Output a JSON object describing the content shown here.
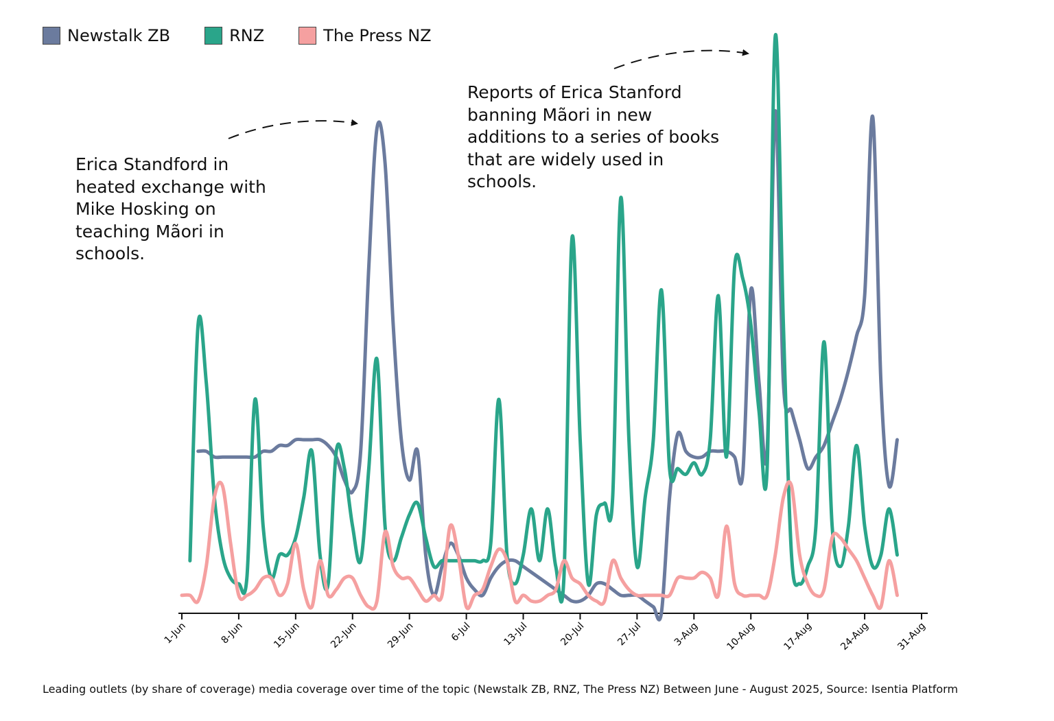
{
  "chart_data": {
    "type": "line",
    "annotations": [
      "Erica Standford in heated exchange with Mike Hosking on teaching Mãori in schools.",
      "Reports of Erica Stanford banning Mãori in new additions to a series of books that are widely used in schools."
    ],
    "caption": "Leading outlets (by share of coverage) media coverage over time of the topic (Newstalk ZB, RNZ, The Press NZ) Between June - August 2025, Source: Isentia Platform",
    "categories": [
      "1-Jun",
      null,
      null,
      null,
      null,
      null,
      null,
      "8-Jun",
      null,
      null,
      null,
      null,
      null,
      null,
      "15-Jun",
      null,
      null,
      null,
      null,
      null,
      null,
      "22-Jun",
      null,
      null,
      null,
      null,
      null,
      null,
      "29-Jun",
      null,
      null,
      null,
      null,
      null,
      null,
      "6-Jul",
      null,
      null,
      null,
      null,
      null,
      null,
      "13-Jul",
      null,
      null,
      null,
      null,
      null,
      null,
      "20-Jul",
      null,
      null,
      null,
      null,
      null,
      null,
      "27-Jul",
      null,
      null,
      null,
      null,
      null,
      null,
      "3-Aug",
      null,
      null,
      null,
      null,
      null,
      null,
      "10-Aug",
      null,
      null,
      null,
      null,
      null,
      null,
      "17-Aug",
      null,
      null,
      null,
      null,
      null,
      null,
      "24-Aug",
      null,
      null,
      null,
      null,
      null,
      null,
      "31-Aug"
    ],
    "ylim": [
      0,
      100
    ],
    "legend": "top-left",
    "series": [
      {
        "name": "Newstalk ZB",
        "color": "#6b7b9e",
        "values": [
          null,
          null,
          28,
          28,
          27,
          27,
          27,
          27,
          27,
          27,
          28,
          28,
          29,
          29,
          30,
          30,
          30,
          30,
          29,
          27,
          23,
          21,
          28,
          60,
          84,
          78,
          50,
          30,
          23,
          28,
          10,
          3,
          8,
          12,
          10,
          6,
          4,
          3,
          6,
          8,
          9,
          9,
          8,
          7,
          6,
          5,
          4,
          3,
          2,
          2,
          3,
          5,
          5,
          4,
          3,
          3,
          3,
          2,
          1,
          0,
          20,
          31,
          28,
          27,
          27,
          28,
          28,
          28,
          27,
          24,
          56,
          40,
          28,
          87,
          40,
          35,
          30,
          25,
          27,
          29,
          33,
          37,
          42,
          48,
          55,
          86,
          40,
          22,
          30,
          null,
          null,
          null
        ]
      },
      {
        "name": "RNZ",
        "color": "#2aa58a",
        "values": [
          null,
          9,
          50,
          40,
          20,
          10,
          6,
          5,
          6,
          37,
          15,
          6,
          10,
          10,
          13,
          20,
          28,
          10,
          5,
          28,
          25,
          15,
          9,
          25,
          44,
          15,
          9,
          13,
          17,
          19,
          13,
          8,
          9,
          9,
          9,
          9,
          9,
          9,
          12,
          37,
          10,
          5,
          10,
          18,
          9,
          18,
          8,
          6,
          65,
          30,
          5,
          17,
          19,
          20,
          72,
          30,
          8,
          20,
          30,
          56,
          25,
          25,
          24,
          26,
          24,
          30,
          55,
          27,
          60,
          58,
          50,
          35,
          25,
          100,
          50,
          10,
          5,
          8,
          15,
          47,
          15,
          8,
          15,
          29,
          15,
          8,
          10,
          18,
          10,
          null,
          null,
          null
        ]
      },
      {
        "name": "The Press NZ",
        "color": "#f5a0a0",
        "values": [
          3,
          3,
          2,
          8,
          20,
          22,
          12,
          3,
          3,
          4,
          6,
          6,
          3,
          5,
          12,
          4,
          1,
          9,
          3,
          4,
          6,
          6,
          3,
          1,
          2,
          14,
          8,
          6,
          6,
          4,
          2,
          3,
          3,
          15,
          10,
          1,
          3,
          4,
          8,
          11,
          9,
          2,
          3,
          2,
          2,
          3,
          4,
          9,
          6,
          5,
          3,
          2,
          2,
          9,
          6,
          4,
          3,
          3,
          3,
          3,
          3,
          6,
          6,
          6,
          7,
          6,
          3,
          15,
          5,
          3,
          3,
          3,
          3,
          10,
          20,
          22,
          10,
          5,
          3,
          4,
          13,
          13,
          11,
          9,
          6,
          3,
          1,
          9,
          3,
          null,
          null,
          null
        ]
      }
    ]
  }
}
